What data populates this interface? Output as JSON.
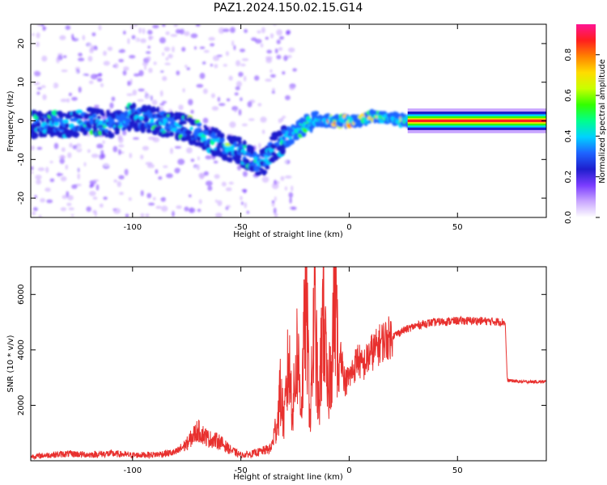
{
  "figure_title": "PAZ1.2024.150.02.15.G14",
  "chart_data": [
    {
      "type": "heatmap",
      "xlabel": "Height of straight line (km)",
      "ylabel": "Frequency (Hz)",
      "xlim": [
        -147,
        91
      ],
      "ylim": [
        -25,
        25
      ],
      "xticks": [
        -100,
        -50,
        0,
        50
      ],
      "xtick_labels": [
        "-100",
        "-50",
        "0",
        "50"
      ],
      "yticks": [
        -20,
        -10,
        0,
        10,
        20
      ],
      "ytick_labels": [
        "-20",
        "-10",
        "0",
        "10",
        "20"
      ],
      "ridge": {
        "x": [
          -140,
          -130,
          -120,
          -110,
          -100,
          -90,
          -80,
          -70,
          -60,
          -50,
          -45,
          -40,
          -35,
          -30,
          -25,
          -20,
          -15,
          -10,
          -5,
          0,
          5,
          10,
          15,
          20,
          27,
          40,
          60,
          80,
          91
        ],
        "frequency": [
          -1,
          -1,
          0,
          -1,
          1,
          0,
          -1,
          -3,
          -6,
          -8,
          -10,
          -11,
          -7,
          -5,
          -3,
          -1,
          0,
          0,
          0,
          0,
          0,
          1,
          1,
          0.5,
          0,
          0,
          0,
          0,
          0
        ]
      },
      "colorbar": {
        "label": "Normalized spectral amplitude",
        "range": [
          0,
          0.95
        ],
        "ticks": [
          0.0,
          0.2,
          0.4,
          0.6,
          0.8
        ],
        "tick_labels": [
          "0.0",
          "0.2",
          "0.4",
          "0.6",
          "0.8"
        ],
        "colormap": [
          "#ffffff",
          "#c9a6ff",
          "#7a3cff",
          "#1e1ecd",
          "#1e64ff",
          "#00d2ff",
          "#00ff8c",
          "#32ff00",
          "#c8ff00",
          "#ffdc00",
          "#ff8200",
          "#ff1e1e",
          "#ff1493"
        ]
      }
    },
    {
      "type": "line",
      "xlabel": "Height of straight line (km)",
      "ylabel": "SNR (10 * v/v)",
      "xlim": [
        -147,
        91
      ],
      "ylim": [
        0,
        7000
      ],
      "xticks": [
        -100,
        -50,
        0,
        50
      ],
      "xtick_labels": [
        "-100",
        "-50",
        "0",
        "50"
      ],
      "yticks": [
        2000,
        4000,
        6000
      ],
      "ytick_labels": [
        "2000",
        "4000",
        "6000"
      ],
      "line_color": "#e8302e",
      "series": [
        {
          "x": [
            -147,
            -140,
            -130,
            -120,
            -110,
            -100,
            -90,
            -80,
            -75,
            -70,
            -65,
            -60,
            -55,
            -50,
            -45,
            -40,
            -36,
            -33,
            -32,
            -30,
            -28,
            -26,
            -24,
            -22,
            -20,
            -18,
            -16,
            -14,
            -12,
            -10,
            -8,
            -6,
            -5,
            -4,
            -2,
            0,
            2,
            4,
            6,
            8,
            10,
            12,
            15,
            20,
            25,
            30,
            35,
            40,
            50,
            60,
            72,
            73,
            80,
            91
          ],
          "y": [
            150,
            200,
            250,
            220,
            260,
            200,
            220,
            300,
            600,
            1100,
            800,
            700,
            400,
            200,
            250,
            350,
            450,
            1500,
            2500,
            1400,
            3600,
            1800,
            4000,
            2000,
            6000,
            1500,
            5500,
            1600,
            5800,
            2200,
            4200,
            6900,
            2400,
            4100,
            2800,
            3000,
            3300,
            3700,
            3400,
            3600,
            3900,
            4000,
            4300,
            4500,
            4700,
            4850,
            4950,
            5000,
            5050,
            5050,
            5000,
            2900,
            2850,
            2850
          ]
        }
      ]
    }
  ]
}
